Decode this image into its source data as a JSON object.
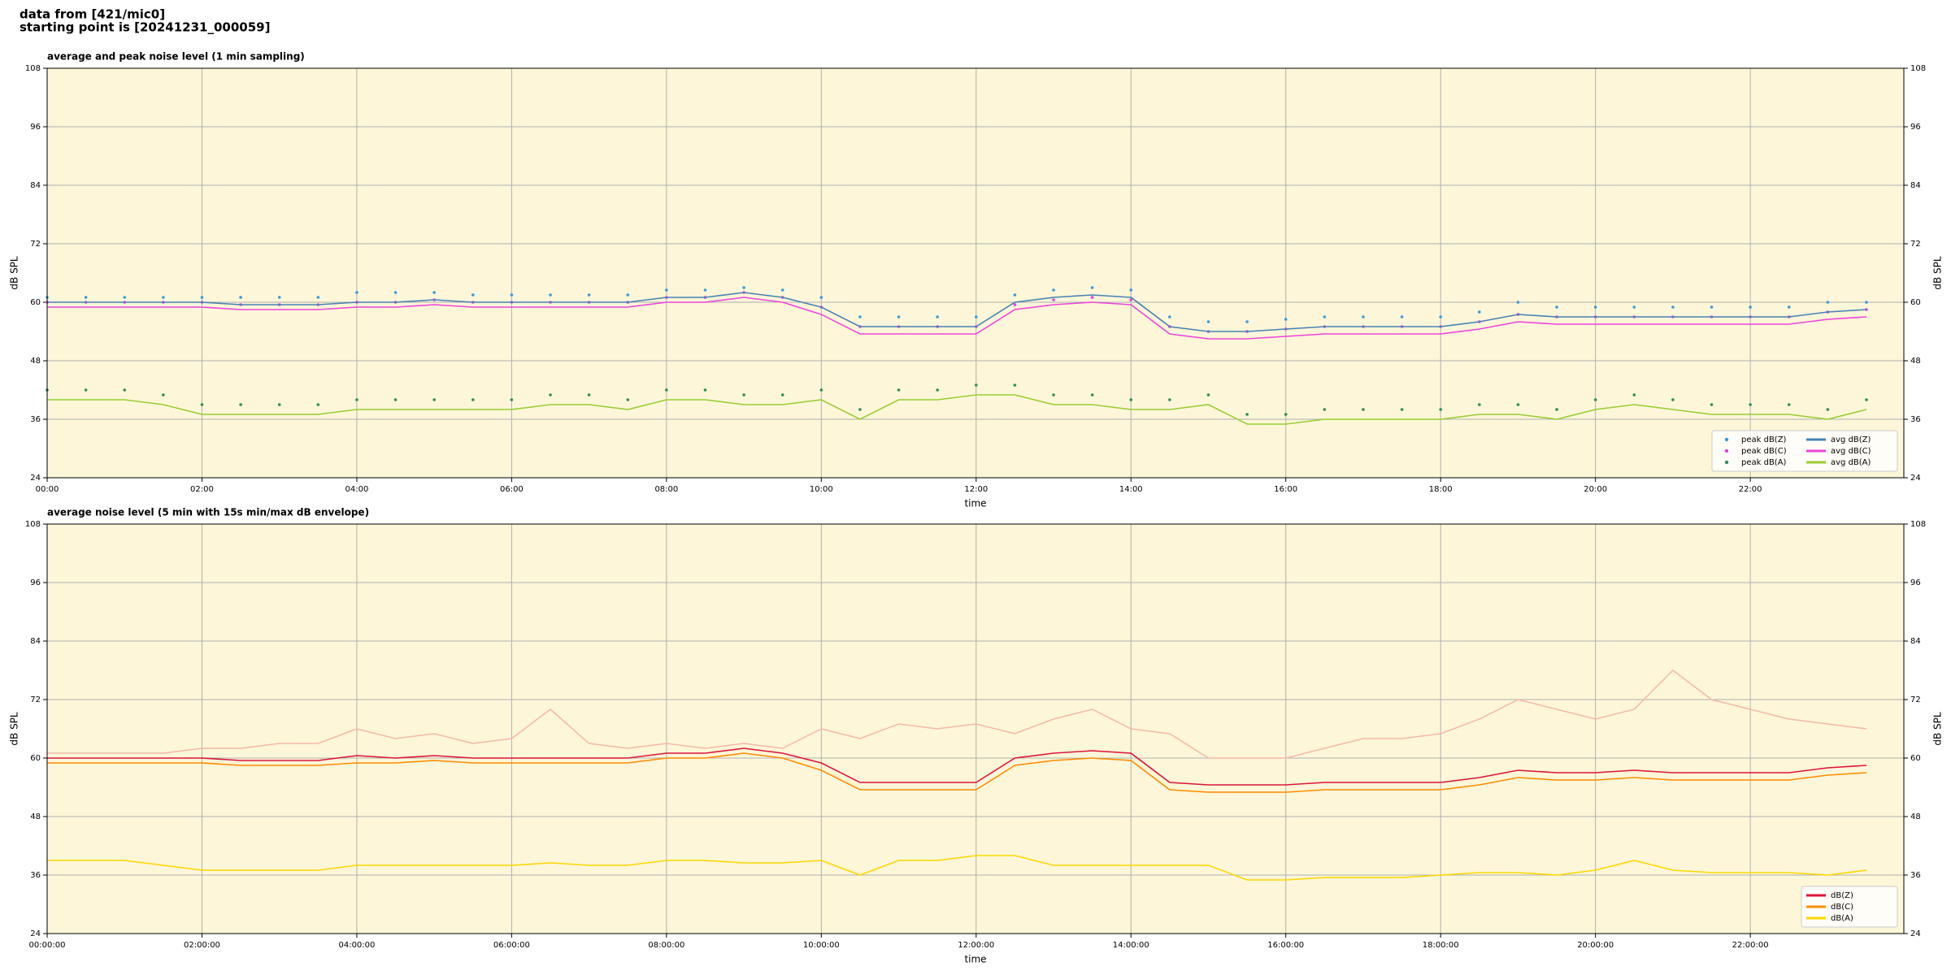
{
  "header": {
    "line1": "data from [421/mic0]",
    "line2": "starting point is [20241231_000059]"
  },
  "chart_data": [
    {
      "type": "line",
      "title": "average and peak noise level (1 min sampling)",
      "x_label": "time",
      "y_label": "dB SPL",
      "y2_label": "dB SPL",
      "x": [
        "00:00",
        "00:30",
        "01:00",
        "01:30",
        "02:00",
        "02:30",
        "03:00",
        "03:30",
        "04:00",
        "04:30",
        "05:00",
        "05:30",
        "06:00",
        "06:30",
        "07:00",
        "07:30",
        "08:00",
        "08:30",
        "09:00",
        "09:30",
        "10:00",
        "10:30",
        "11:00",
        "11:30",
        "12:00",
        "12:30",
        "13:00",
        "13:30",
        "14:00",
        "14:30",
        "15:00",
        "15:30",
        "16:00",
        "16:30",
        "17:00",
        "17:30",
        "18:00",
        "18:30",
        "19:00",
        "19:30",
        "20:00",
        "20:30",
        "21:00",
        "21:30",
        "22:00",
        "22:30",
        "23:00",
        "23:30"
      ],
      "xlim": [
        "00:00",
        "23:59"
      ],
      "xticks": [
        "00:00",
        "02:00",
        "04:00",
        "06:00",
        "08:00",
        "10:00",
        "12:00",
        "14:00",
        "16:00",
        "18:00",
        "20:00",
        "22:00"
      ],
      "ylim": [
        24,
        108
      ],
      "yticks": [
        24,
        36,
        48,
        60,
        72,
        84,
        96,
        108
      ],
      "grid": true,
      "background": "#fdf6d8",
      "legend": "lower right",
      "series": [
        {
          "name": "peak dB(Z)",
          "style": "dots",
          "color": "#3a9ad9",
          "values": [
            61,
            61,
            61,
            61,
            61,
            61,
            61,
            61,
            62,
            62,
            62,
            61.5,
            61.5,
            61.5,
            61.5,
            61.5,
            62.5,
            62.5,
            63,
            62.5,
            61,
            57,
            57,
            57,
            57,
            61.5,
            62.5,
            63,
            62.5,
            57,
            56,
            56,
            56.5,
            57,
            57,
            57,
            57,
            58,
            60,
            59,
            59,
            59,
            59,
            59,
            59,
            59,
            60,
            60
          ]
        },
        {
          "name": "peak dB(C)",
          "style": "dots",
          "color": "#e040e0",
          "values": [
            60,
            60,
            60,
            60,
            60,
            59.5,
            59.5,
            59.5,
            60,
            60,
            60.5,
            60,
            60,
            60,
            60,
            60,
            61,
            61,
            62,
            61,
            59,
            55,
            55,
            55,
            55,
            59.5,
            60.5,
            61,
            60.5,
            55,
            54,
            54,
            54.5,
            55,
            55,
            55,
            55,
            56,
            57.5,
            57,
            57,
            57,
            57,
            57,
            57,
            57,
            58,
            58.5
          ]
        },
        {
          "name": "peak dB(A)",
          "style": "dots",
          "color": "#2e8b57",
          "values": [
            42,
            42,
            42,
            41,
            39,
            39,
            39,
            39,
            40,
            40,
            40,
            40,
            40,
            41,
            41,
            40,
            42,
            42,
            41,
            41,
            42,
            38,
            42,
            42,
            43,
            43,
            41,
            41,
            40,
            40,
            41,
            37,
            37,
            38,
            38,
            38,
            38,
            39,
            39,
            38,
            40,
            41,
            40,
            39,
            39,
            39,
            38,
            40
          ]
        },
        {
          "name": "avg dB(Z)",
          "style": "line",
          "color": "#4682b4",
          "values": [
            60,
            60,
            60,
            60,
            60,
            59.5,
            59.5,
            59.5,
            60,
            60,
            60.5,
            60,
            60,
            60,
            60,
            60,
            61,
            61,
            62,
            61,
            59,
            55,
            55,
            55,
            55,
            60,
            61,
            61.5,
            61,
            55,
            54,
            54,
            54.5,
            55,
            55,
            55,
            55,
            56,
            57.5,
            57,
            57,
            57,
            57,
            57,
            57,
            57,
            58,
            58.5
          ]
        },
        {
          "name": "avg dB(C)",
          "style": "line",
          "color": "#ee44dd",
          "values": [
            59,
            59,
            59,
            59,
            59,
            58.5,
            58.5,
            58.5,
            59,
            59,
            59.5,
            59,
            59,
            59,
            59,
            59,
            60,
            60,
            61,
            60,
            57.5,
            53.5,
            53.5,
            53.5,
            53.5,
            58.5,
            59.5,
            60,
            59.5,
            53.5,
            52.5,
            52.5,
            53,
            53.5,
            53.5,
            53.5,
            53.5,
            54.5,
            56,
            55.5,
            55.5,
            55.5,
            55.5,
            55.5,
            55.5,
            55.5,
            56.5,
            57
          ]
        },
        {
          "name": "avg dB(A)",
          "style": "line",
          "color": "#9acd32",
          "values": [
            40,
            40,
            40,
            39,
            37,
            37,
            37,
            37,
            38,
            38,
            38,
            38,
            38,
            39,
            39,
            38,
            40,
            40,
            39,
            39,
            40,
            36,
            40,
            40,
            41,
            41,
            39,
            39,
            38,
            38,
            39,
            35,
            35,
            36,
            36,
            36,
            36,
            37,
            37,
            36,
            38,
            39,
            38,
            37,
            37,
            37,
            36,
            38
          ]
        }
      ]
    },
    {
      "type": "line",
      "title": "average noise level (5 min with 15s min/max dB envelope)",
      "x_label": "time",
      "y_label": "dB SPL",
      "y2_label": "dB SPL",
      "x": [
        "00:00",
        "00:30",
        "01:00",
        "01:30",
        "02:00",
        "02:30",
        "03:00",
        "03:30",
        "04:00",
        "04:30",
        "05:00",
        "05:30",
        "06:00",
        "06:30",
        "07:00",
        "07:30",
        "08:00",
        "08:30",
        "09:00",
        "09:30",
        "10:00",
        "10:30",
        "11:00",
        "11:30",
        "12:00",
        "12:30",
        "13:00",
        "13:30",
        "14:00",
        "14:30",
        "15:00",
        "15:30",
        "16:00",
        "16:30",
        "17:00",
        "17:30",
        "18:00",
        "18:30",
        "19:00",
        "19:30",
        "20:00",
        "20:30",
        "21:00",
        "21:30",
        "22:00",
        "22:30",
        "23:00",
        "23:30"
      ],
      "xlim": [
        "00:00",
        "23:59"
      ],
      "xticks": [
        "00:00:00",
        "02:00:00",
        "04:00:00",
        "06:00:00",
        "08:00:00",
        "10:00:00",
        "12:00:00",
        "14:00:00",
        "16:00:00",
        "18:00:00",
        "20:00:00",
        "22:00:00"
      ],
      "ylim": [
        24,
        108
      ],
      "yticks": [
        24,
        36,
        48,
        60,
        72,
        84,
        96,
        108
      ],
      "grid": true,
      "background": "#fdf6d8",
      "legend": "lower right",
      "envelope": {
        "color": "#f4b8a8",
        "values": [
          61,
          61,
          61,
          61,
          62,
          62,
          63,
          63,
          66,
          64,
          65,
          63,
          64,
          70,
          63,
          62,
          63,
          62,
          63,
          62,
          66,
          64,
          67,
          66,
          67,
          65,
          68,
          70,
          66,
          65,
          60,
          60,
          60,
          62,
          64,
          64,
          65,
          68,
          72,
          70,
          68,
          70,
          78,
          72,
          70,
          68,
          67,
          66
        ]
      },
      "series": [
        {
          "name": "dB(Z)",
          "style": "line",
          "color": "#dc143c",
          "values": [
            60,
            60,
            60,
            60,
            60,
            59.5,
            59.5,
            59.5,
            60.5,
            60,
            60.5,
            60,
            60,
            60,
            60,
            60,
            61,
            61,
            62,
            61,
            59,
            55,
            55,
            55,
            55,
            60,
            61,
            61.5,
            61,
            55,
            54.5,
            54.5,
            54.5,
            55,
            55,
            55,
            55,
            56,
            57.5,
            57,
            57,
            57.5,
            57,
            57,
            57,
            57,
            58,
            58.5
          ]
        },
        {
          "name": "dB(C)",
          "style": "line",
          "color": "#ff8c00",
          "values": [
            59,
            59,
            59,
            59,
            59,
            58.5,
            58.5,
            58.5,
            59,
            59,
            59.5,
            59,
            59,
            59,
            59,
            59,
            60,
            60,
            61,
            60,
            57.5,
            53.5,
            53.5,
            53.5,
            53.5,
            58.5,
            59.5,
            60,
            59.5,
            53.5,
            53,
            53,
            53,
            53.5,
            53.5,
            53.5,
            53.5,
            54.5,
            56,
            55.5,
            55.5,
            56,
            55.5,
            55.5,
            55.5,
            55.5,
            56.5,
            57
          ]
        },
        {
          "name": "dB(A)",
          "style": "line",
          "color": "#ffd700",
          "values": [
            39,
            39,
            39,
            38,
            37,
            37,
            37,
            37,
            38,
            38,
            38,
            38,
            38,
            38.5,
            38,
            38,
            39,
            39,
            38.5,
            38.5,
            39,
            36,
            39,
            39,
            40,
            40,
            38,
            38,
            38,
            38,
            38,
            35,
            35,
            35.5,
            35.5,
            35.5,
            36,
            36.5,
            36.5,
            36,
            37,
            39,
            37,
            36.5,
            36.5,
            36.5,
            36,
            37
          ]
        }
      ]
    }
  ]
}
